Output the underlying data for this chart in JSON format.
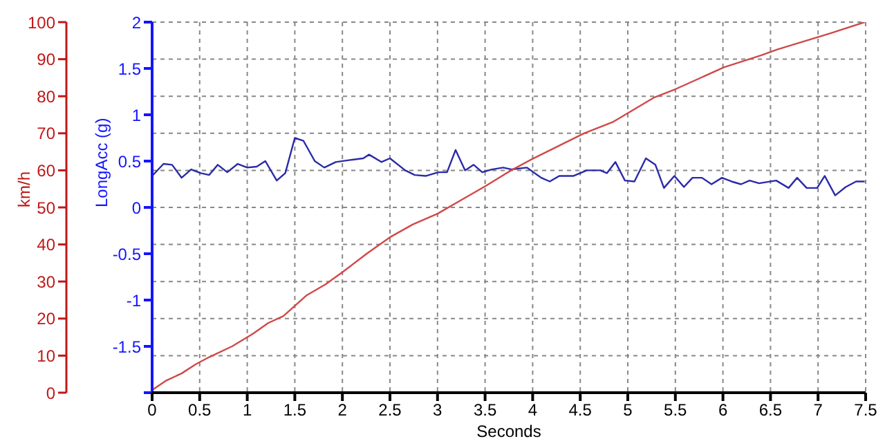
{
  "chart_data": {
    "type": "line",
    "xlabel": "Seconds",
    "ylabel": "LongAcc (g)",
    "y2label": "km/h",
    "xlim": [
      0,
      7.5
    ],
    "xticks": [
      0,
      0.5,
      1,
      1.5,
      2,
      2.5,
      3,
      3.5,
      4,
      4.5,
      5,
      5.5,
      6,
      6.5,
      7,
      7.5
    ],
    "ylim": [
      -2,
      2
    ],
    "yticks": [
      {
        "value": -2,
        "label": null
      },
      -1.5,
      -1,
      -0.5,
      0,
      0.5,
      1,
      1.5,
      2
    ],
    "y2lim": [
      0,
      100
    ],
    "y2ticks": [
      0,
      10,
      20,
      30,
      40,
      50,
      60,
      70,
      80,
      90,
      100
    ],
    "grid": true,
    "marker": "none",
    "line_style": "solid",
    "series": [
      {
        "color": "#2a2aa8",
        "x": [
          0,
          0.12,
          0.21,
          0.31,
          0.41,
          0.51,
          0.6,
          0.69,
          0.79,
          0.9,
          1,
          1.1,
          1.19,
          1.31,
          1.4,
          1.5,
          1.59,
          1.71,
          1.81,
          1.93,
          2.07,
          2.22,
          2.28,
          2.41,
          2.5,
          2.66,
          2.76,
          2.88,
          3.01,
          3.1,
          3.19,
          3.29,
          3.38,
          3.47,
          3.57,
          3.69,
          3.78,
          3.94,
          4.09,
          4.18,
          4.28,
          4.43,
          4.57,
          4.71,
          4.78,
          4.87,
          4.97,
          5.07,
          5.19,
          5.29,
          5.38,
          5.49,
          5.59,
          5.68,
          5.78,
          5.88,
          5.99,
          6.09,
          6.19,
          6.28,
          6.38,
          6.56,
          6.69,
          6.78,
          6.88,
          6.99,
          7.07,
          7.18,
          7.29,
          7.4,
          7.49
        ],
        "values": [
          0.34,
          0.47,
          0.46,
          0.32,
          0.41,
          0.37,
          0.35,
          0.46,
          0.38,
          0.47,
          0.43,
          0.44,
          0.5,
          0.29,
          0.37,
          0.75,
          0.72,
          0.5,
          0.43,
          0.49,
          0.51,
          0.53,
          0.57,
          0.49,
          0.53,
          0.4,
          0.35,
          0.34,
          0.38,
          0.38,
          0.62,
          0.4,
          0.46,
          0.38,
          0.41,
          0.43,
          0.41,
          0.43,
          0.32,
          0.28,
          0.34,
          0.34,
          0.4,
          0.4,
          0.37,
          0.49,
          0.29,
          0.28,
          0.53,
          0.46,
          0.21,
          0.34,
          0.22,
          0.32,
          0.32,
          0.25,
          0.32,
          0.28,
          0.25,
          0.29,
          0.26,
          0.29,
          0.21,
          0.32,
          0.21,
          0.21,
          0.34,
          0.13,
          0.22,
          0.28,
          0.28
        ]
      },
      {
        "color": "#d04848",
        "axis": "y2",
        "x": [
          0,
          0.15,
          0.31,
          0.46,
          0.6,
          0.84,
          1.06,
          1.22,
          1.38,
          1.62,
          1.82,
          2,
          2.26,
          2.51,
          2.74,
          3,
          3.25,
          3.5,
          3.78,
          3.99,
          4.54,
          4.84,
          5.28,
          5.5,
          6.01,
          6.41,
          6.57,
          7.13,
          7.49
        ],
        "values": [
          0.7,
          3.3,
          5.2,
          7.7,
          9.6,
          12.5,
          15.9,
          18.8,
          20.7,
          26.2,
          29.2,
          32.5,
          37.6,
          42.1,
          45.4,
          48.3,
          52,
          55.7,
          60.1,
          63,
          70,
          73,
          79.7,
          81.9,
          87.8,
          91.1,
          92.6,
          97,
          100
        ]
      }
    ]
  }
}
